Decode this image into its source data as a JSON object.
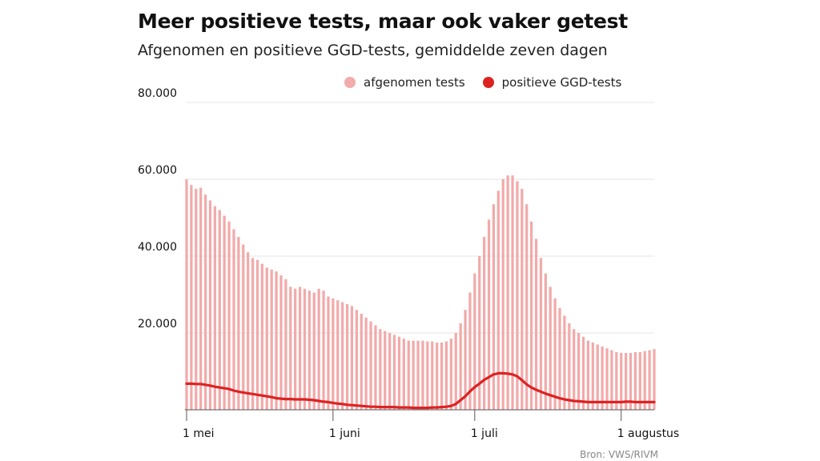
{
  "title": "Meer positieve tests, maar ook vaker getest",
  "subtitle": "Afgenomen en positieve GGD-tests, gemiddelde zeven dagen",
  "source": "Bron: VWS/RIVM",
  "colors": {
    "tests": "#f2aaaa",
    "positives": "#dd2222",
    "grid": "#e6e6e6",
    "axis": "#555555"
  },
  "chart_data": {
    "type": "bar",
    "series": [
      {
        "name": "afgenomen tests",
        "type": "bar",
        "values": [
          60000,
          58500,
          57500,
          57800,
          56000,
          54500,
          53000,
          52000,
          50500,
          49000,
          47000,
          45000,
          43000,
          41000,
          39500,
          39000,
          38000,
          37000,
          36500,
          36000,
          35000,
          34000,
          32000,
          31500,
          32000,
          31500,
          31000,
          30500,
          31500,
          31000,
          29500,
          29000,
          28500,
          28000,
          27500,
          27000,
          26000,
          25000,
          24000,
          23000,
          22000,
          21000,
          20500,
          20000,
          19500,
          19000,
          18500,
          18000,
          18000,
          18000,
          18000,
          17800,
          17800,
          17500,
          17500,
          17800,
          18500,
          20000,
          22500,
          26000,
          30500,
          35500,
          40000,
          45000,
          49500,
          53500,
          57000,
          60000,
          61000,
          61000,
          59500,
          57500,
          53500,
          49000,
          44500,
          39500,
          35500,
          32000,
          29000,
          26500,
          24500,
          22500,
          21000,
          20000,
          19000,
          18000,
          17500,
          17000,
          16500,
          16000,
          15500,
          15000,
          14800,
          14800,
          14800,
          15000,
          15000,
          15300,
          15500,
          15800
        ]
      },
      {
        "name": "positieve GGD-tests",
        "type": "line",
        "values": [
          6800,
          6800,
          6700,
          6700,
          6500,
          6300,
          6000,
          5800,
          5600,
          5400,
          5000,
          4700,
          4500,
          4300,
          4100,
          3900,
          3700,
          3500,
          3300,
          3000,
          2900,
          2800,
          2800,
          2700,
          2700,
          2700,
          2600,
          2500,
          2300,
          2100,
          2000,
          1800,
          1600,
          1500,
          1300,
          1200,
          1100,
          1000,
          900,
          800,
          800,
          700,
          700,
          700,
          700,
          600,
          600,
          600,
          500,
          500,
          500,
          500,
          600,
          600,
          700,
          800,
          1000,
          1500,
          2500,
          3500,
          4800,
          5900,
          6800,
          7800,
          8500,
          9200,
          9500,
          9500,
          9400,
          9200,
          8700,
          7700,
          6600,
          5800,
          5200,
          4700,
          4200,
          3800,
          3400,
          3000,
          2700,
          2500,
          2300,
          2200,
          2100,
          2000,
          2000,
          2000,
          2000,
          2000,
          2000,
          2000,
          2000,
          2100,
          2100,
          2000,
          2000,
          2000,
          2000,
          2000
        ]
      }
    ],
    "x_tick_labels": [
      "1 mei",
      "1 juni",
      "1 juli",
      "1 augustus"
    ],
    "x_tick_index": [
      0,
      31,
      61,
      92
    ],
    "y_ticks": [
      20000,
      40000,
      60000,
      80000
    ],
    "y_tick_labels": [
      "20.000",
      "40.000",
      "60.000",
      "80.000"
    ],
    "ylim": [
      0,
      80000
    ],
    "grid": true,
    "legend_position": "top-right"
  }
}
